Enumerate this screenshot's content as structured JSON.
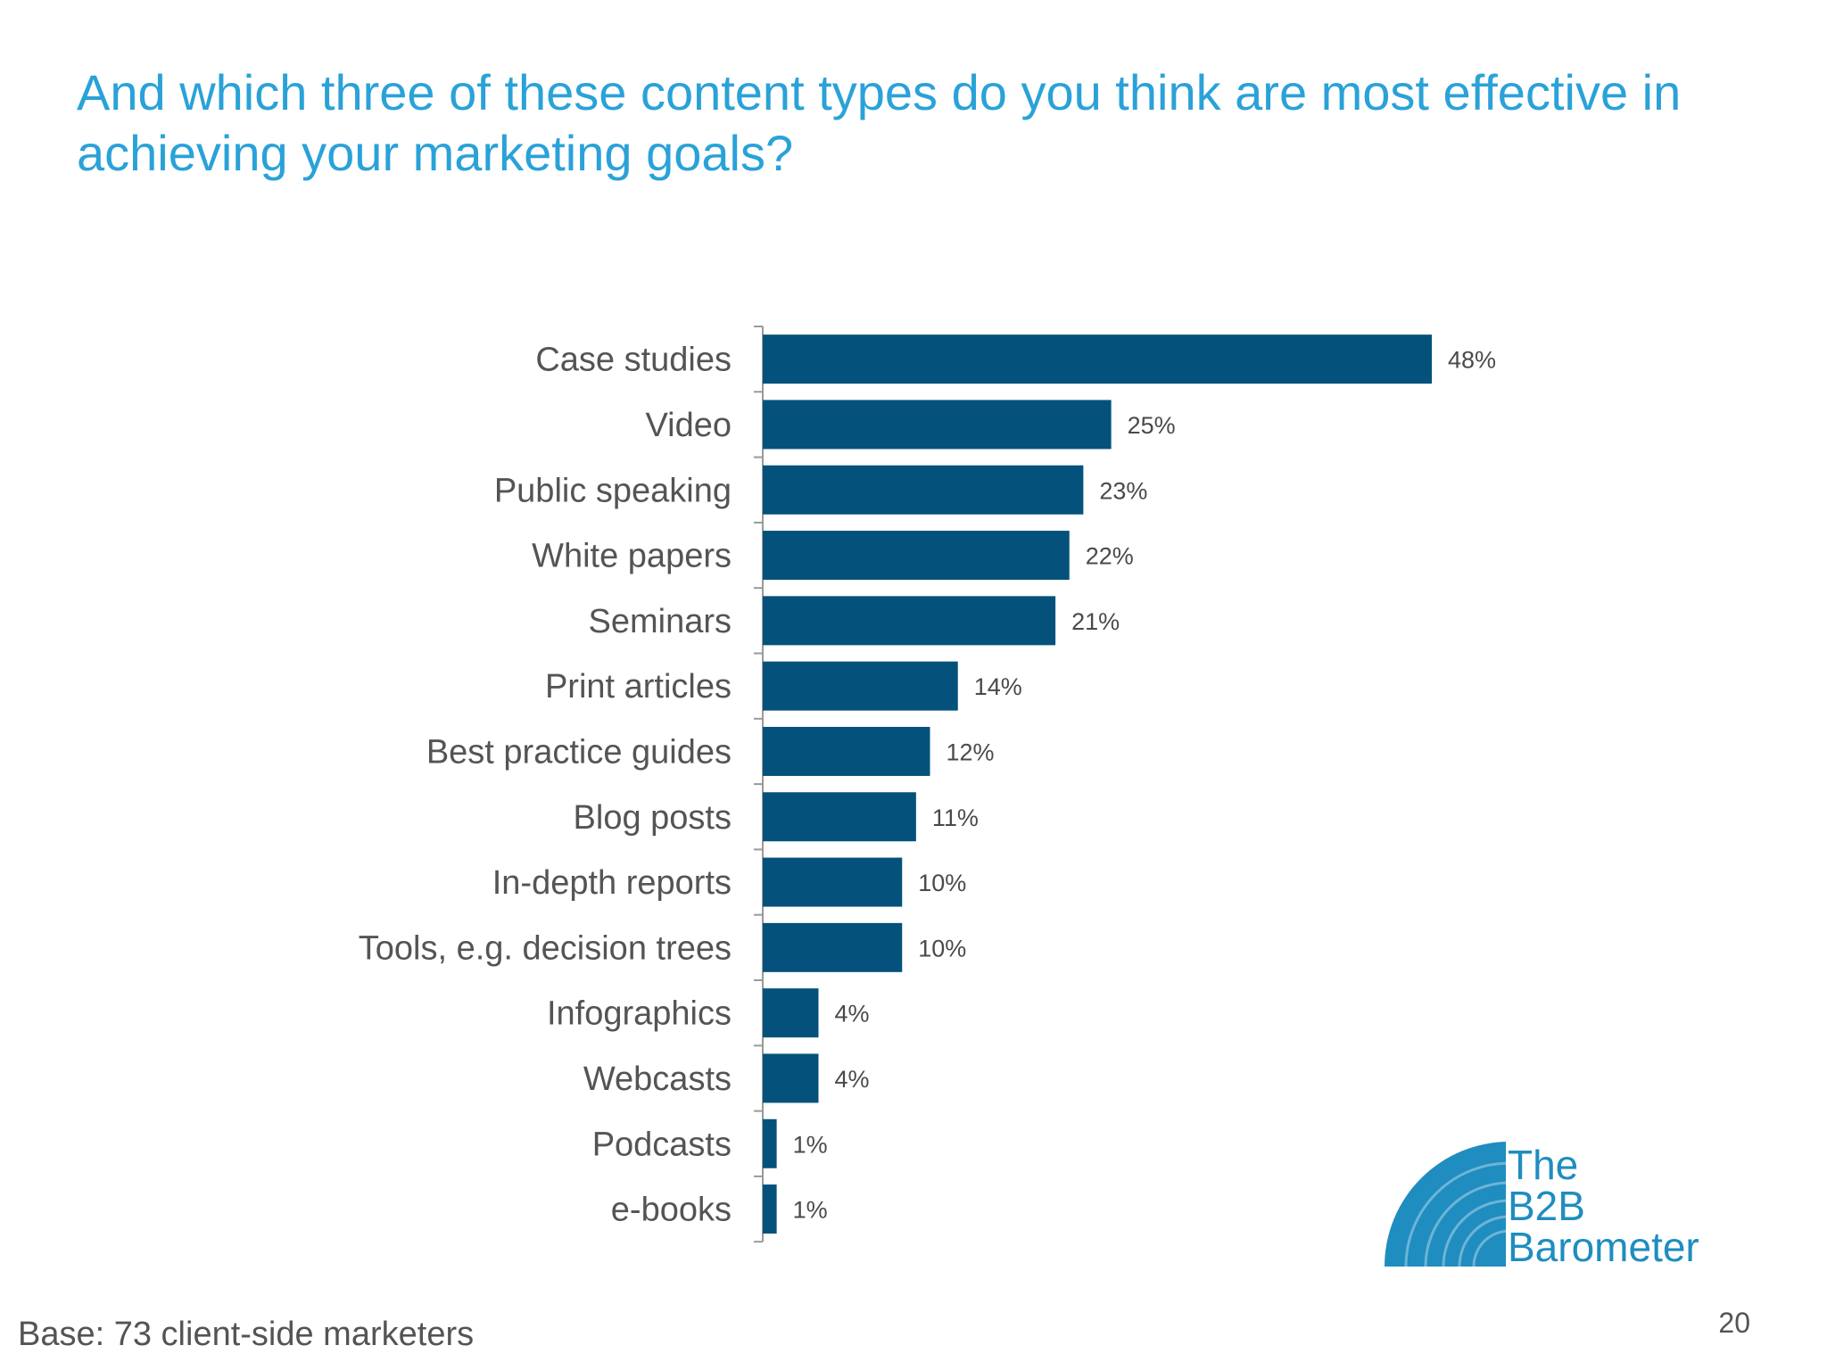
{
  "slide": {
    "title": "And which three of these content types do you think are most effective in achieving your marketing goals?",
    "footnote": "Base: 73 client-side marketers",
    "page_number": "20"
  },
  "logo": {
    "line1": "The",
    "line2": "B2B",
    "line3": "Barometer",
    "color": "#1f8dc0"
  },
  "colors": {
    "bar": "#04527b",
    "axis": "#9a9a9a",
    "title": "#2aa2d8"
  },
  "chart_data": {
    "type": "bar",
    "orientation": "horizontal",
    "categories": [
      "Case studies",
      "Video",
      "Public speaking",
      "White papers",
      "Seminars",
      "Print articles",
      "Best practice guides",
      "Blog posts",
      "In-depth reports",
      "Tools, e.g. decision trees",
      "Infographics",
      "Webcasts",
      "Podcasts",
      "e-books"
    ],
    "values": [
      48,
      25,
      23,
      22,
      21,
      14,
      12,
      11,
      10,
      10,
      4,
      4,
      1,
      1
    ],
    "value_labels": [
      "48%",
      "25%",
      "23%",
      "22%",
      "21%",
      "14%",
      "12%",
      "11%",
      "10%",
      "10%",
      "4%",
      "4%",
      "1%",
      "1%"
    ],
    "unit": "%",
    "xlim": [
      0,
      48
    ],
    "grid": false,
    "legend": "none"
  }
}
